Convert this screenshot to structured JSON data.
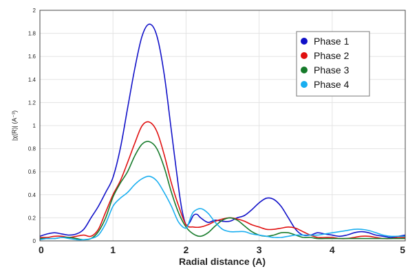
{
  "chart_data": {
    "type": "line",
    "title": "",
    "xlabel": "Radial distance (A)",
    "ylabel": "|χ(R)|  (A⁻³)",
    "xlim": [
      0,
      5
    ],
    "ylim": [
      0,
      2
    ],
    "x_ticks": [
      0,
      1,
      2,
      3,
      4,
      5
    ],
    "y_ticks": [
      0,
      0.2,
      0.4,
      0.6,
      0.8,
      1,
      1.2,
      1.4,
      1.6,
      1.8,
      2
    ],
    "x_tick_labels": [
      "0",
      "1",
      "2",
      "3",
      "4",
      "5"
    ],
    "y_tick_labels": [
      "0",
      "0.2",
      "0.4",
      "0.6",
      "0.8",
      "1",
      "1.2",
      "1.4",
      "1.6",
      "1.8",
      "2"
    ],
    "grid": true,
    "legend_position": "top-right",
    "series": [
      {
        "name": "Phase 1",
        "color": "#1010c8",
        "points": [
          [
            0,
            0.04
          ],
          [
            0.1,
            0.06
          ],
          [
            0.2,
            0.07
          ],
          [
            0.3,
            0.06
          ],
          [
            0.4,
            0.05
          ],
          [
            0.5,
            0.06
          ],
          [
            0.6,
            0.1
          ],
          [
            0.7,
            0.2
          ],
          [
            0.8,
            0.3
          ],
          [
            0.9,
            0.42
          ],
          [
            1.0,
            0.55
          ],
          [
            1.1,
            0.8
          ],
          [
            1.2,
            1.15
          ],
          [
            1.3,
            1.5
          ],
          [
            1.4,
            1.78
          ],
          [
            1.5,
            1.88
          ],
          [
            1.6,
            1.78
          ],
          [
            1.7,
            1.45
          ],
          [
            1.8,
            0.95
          ],
          [
            1.9,
            0.45
          ],
          [
            1.95,
            0.25
          ],
          [
            2.0,
            0.14
          ],
          [
            2.05,
            0.16
          ],
          [
            2.1,
            0.22
          ],
          [
            2.15,
            0.23
          ],
          [
            2.2,
            0.2
          ],
          [
            2.3,
            0.16
          ],
          [
            2.4,
            0.18
          ],
          [
            2.5,
            0.17
          ],
          [
            2.6,
            0.17
          ],
          [
            2.7,
            0.2
          ],
          [
            2.8,
            0.22
          ],
          [
            2.9,
            0.27
          ],
          [
            3.0,
            0.33
          ],
          [
            3.1,
            0.37
          ],
          [
            3.2,
            0.36
          ],
          [
            3.3,
            0.3
          ],
          [
            3.4,
            0.2
          ],
          [
            3.5,
            0.1
          ],
          [
            3.6,
            0.05
          ],
          [
            3.7,
            0.05
          ],
          [
            3.8,
            0.07
          ],
          [
            3.9,
            0.06
          ],
          [
            4.0,
            0.05
          ],
          [
            4.1,
            0.04
          ],
          [
            4.2,
            0.05
          ],
          [
            4.3,
            0.07
          ],
          [
            4.4,
            0.08
          ],
          [
            4.5,
            0.07
          ],
          [
            4.6,
            0.05
          ],
          [
            4.7,
            0.04
          ],
          [
            4.8,
            0.03
          ],
          [
            4.9,
            0.04
          ],
          [
            5.0,
            0.05
          ]
        ]
      },
      {
        "name": "Phase 2",
        "color": "#e01010",
        "points": [
          [
            0,
            0.03
          ],
          [
            0.1,
            0.03
          ],
          [
            0.2,
            0.04
          ],
          [
            0.3,
            0.04
          ],
          [
            0.4,
            0.03
          ],
          [
            0.5,
            0.04
          ],
          [
            0.6,
            0.05
          ],
          [
            0.7,
            0.04
          ],
          [
            0.8,
            0.1
          ],
          [
            0.9,
            0.25
          ],
          [
            1.0,
            0.4
          ],
          [
            1.1,
            0.52
          ],
          [
            1.2,
            0.68
          ],
          [
            1.3,
            0.85
          ],
          [
            1.4,
            1.0
          ],
          [
            1.5,
            1.03
          ],
          [
            1.6,
            0.95
          ],
          [
            1.7,
            0.75
          ],
          [
            1.8,
            0.5
          ],
          [
            1.9,
            0.3
          ],
          [
            2.0,
            0.14
          ],
          [
            2.1,
            0.12
          ],
          [
            2.2,
            0.12
          ],
          [
            2.3,
            0.14
          ],
          [
            2.4,
            0.17
          ],
          [
            2.5,
            0.19
          ],
          [
            2.6,
            0.2
          ],
          [
            2.7,
            0.19
          ],
          [
            2.8,
            0.17
          ],
          [
            2.9,
            0.14
          ],
          [
            3.0,
            0.12
          ],
          [
            3.1,
            0.1
          ],
          [
            3.2,
            0.1
          ],
          [
            3.3,
            0.11
          ],
          [
            3.4,
            0.12
          ],
          [
            3.5,
            0.11
          ],
          [
            3.6,
            0.08
          ],
          [
            3.7,
            0.05
          ],
          [
            3.8,
            0.03
          ],
          [
            3.9,
            0.03
          ],
          [
            4.0,
            0.03
          ],
          [
            4.1,
            0.02
          ],
          [
            4.2,
            0.02
          ],
          [
            4.3,
            0.03
          ],
          [
            4.4,
            0.04
          ],
          [
            4.5,
            0.04
          ],
          [
            4.6,
            0.03
          ],
          [
            4.7,
            0.02
          ],
          [
            4.8,
            0.02
          ],
          [
            4.9,
            0.03
          ],
          [
            5.0,
            0.03
          ]
        ]
      },
      {
        "name": "Phase 3",
        "color": "#167a2a",
        "points": [
          [
            0,
            0.02
          ],
          [
            0.1,
            0.02
          ],
          [
            0.2,
            0.02
          ],
          [
            0.3,
            0.03
          ],
          [
            0.4,
            0.03
          ],
          [
            0.5,
            0.02
          ],
          [
            0.6,
            0.01
          ],
          [
            0.7,
            0.02
          ],
          [
            0.8,
            0.08
          ],
          [
            0.9,
            0.2
          ],
          [
            1.0,
            0.38
          ],
          [
            1.1,
            0.5
          ],
          [
            1.2,
            0.6
          ],
          [
            1.3,
            0.74
          ],
          [
            1.4,
            0.84
          ],
          [
            1.5,
            0.86
          ],
          [
            1.6,
            0.8
          ],
          [
            1.7,
            0.64
          ],
          [
            1.8,
            0.42
          ],
          [
            1.9,
            0.24
          ],
          [
            2.0,
            0.12
          ],
          [
            2.1,
            0.06
          ],
          [
            2.2,
            0.04
          ],
          [
            2.3,
            0.07
          ],
          [
            2.4,
            0.13
          ],
          [
            2.5,
            0.18
          ],
          [
            2.6,
            0.2
          ],
          [
            2.7,
            0.18
          ],
          [
            2.8,
            0.13
          ],
          [
            2.9,
            0.08
          ],
          [
            3.0,
            0.05
          ],
          [
            3.1,
            0.04
          ],
          [
            3.2,
            0.05
          ],
          [
            3.3,
            0.07
          ],
          [
            3.4,
            0.07
          ],
          [
            3.5,
            0.05
          ],
          [
            3.6,
            0.03
          ],
          [
            3.7,
            0.03
          ],
          [
            3.8,
            0.02
          ],
          [
            3.9,
            0.02
          ],
          [
            4.0,
            0.02
          ],
          [
            4.1,
            0.02
          ],
          [
            4.2,
            0.02
          ],
          [
            4.3,
            0.02
          ],
          [
            4.4,
            0.02
          ],
          [
            4.5,
            0.02
          ],
          [
            4.6,
            0.02
          ],
          [
            4.7,
            0.02
          ],
          [
            4.8,
            0.02
          ],
          [
            4.9,
            0.02
          ],
          [
            5.0,
            0.02
          ]
        ]
      },
      {
        "name": "Phase 4",
        "color": "#18aef0",
        "points": [
          [
            0,
            0.01
          ],
          [
            0.1,
            0.02
          ],
          [
            0.2,
            0.02
          ],
          [
            0.3,
            0.03
          ],
          [
            0.4,
            0.02
          ],
          [
            0.5,
            0.01
          ],
          [
            0.6,
            0.01
          ],
          [
            0.7,
            0.02
          ],
          [
            0.8,
            0.05
          ],
          [
            0.9,
            0.15
          ],
          [
            1.0,
            0.3
          ],
          [
            1.1,
            0.37
          ],
          [
            1.2,
            0.42
          ],
          [
            1.3,
            0.49
          ],
          [
            1.4,
            0.54
          ],
          [
            1.5,
            0.56
          ],
          [
            1.6,
            0.52
          ],
          [
            1.7,
            0.42
          ],
          [
            1.8,
            0.3
          ],
          [
            1.9,
            0.16
          ],
          [
            2.0,
            0.11
          ],
          [
            2.05,
            0.18
          ],
          [
            2.1,
            0.25
          ],
          [
            2.2,
            0.28
          ],
          [
            2.3,
            0.24
          ],
          [
            2.4,
            0.16
          ],
          [
            2.5,
            0.1
          ],
          [
            2.6,
            0.08
          ],
          [
            2.7,
            0.08
          ],
          [
            2.8,
            0.08
          ],
          [
            2.9,
            0.06
          ],
          [
            3.0,
            0.05
          ],
          [
            3.1,
            0.04
          ],
          [
            3.2,
            0.03
          ],
          [
            3.3,
            0.03
          ],
          [
            3.4,
            0.04
          ],
          [
            3.5,
            0.05
          ],
          [
            3.6,
            0.05
          ],
          [
            3.7,
            0.05
          ],
          [
            3.8,
            0.05
          ],
          [
            3.9,
            0.06
          ],
          [
            4.0,
            0.07
          ],
          [
            4.1,
            0.08
          ],
          [
            4.2,
            0.09
          ],
          [
            4.3,
            0.1
          ],
          [
            4.4,
            0.1
          ],
          [
            4.5,
            0.09
          ],
          [
            4.6,
            0.07
          ],
          [
            4.7,
            0.05
          ],
          [
            4.8,
            0.04
          ],
          [
            4.9,
            0.04
          ],
          [
            5.0,
            0.04
          ]
        ]
      }
    ]
  }
}
